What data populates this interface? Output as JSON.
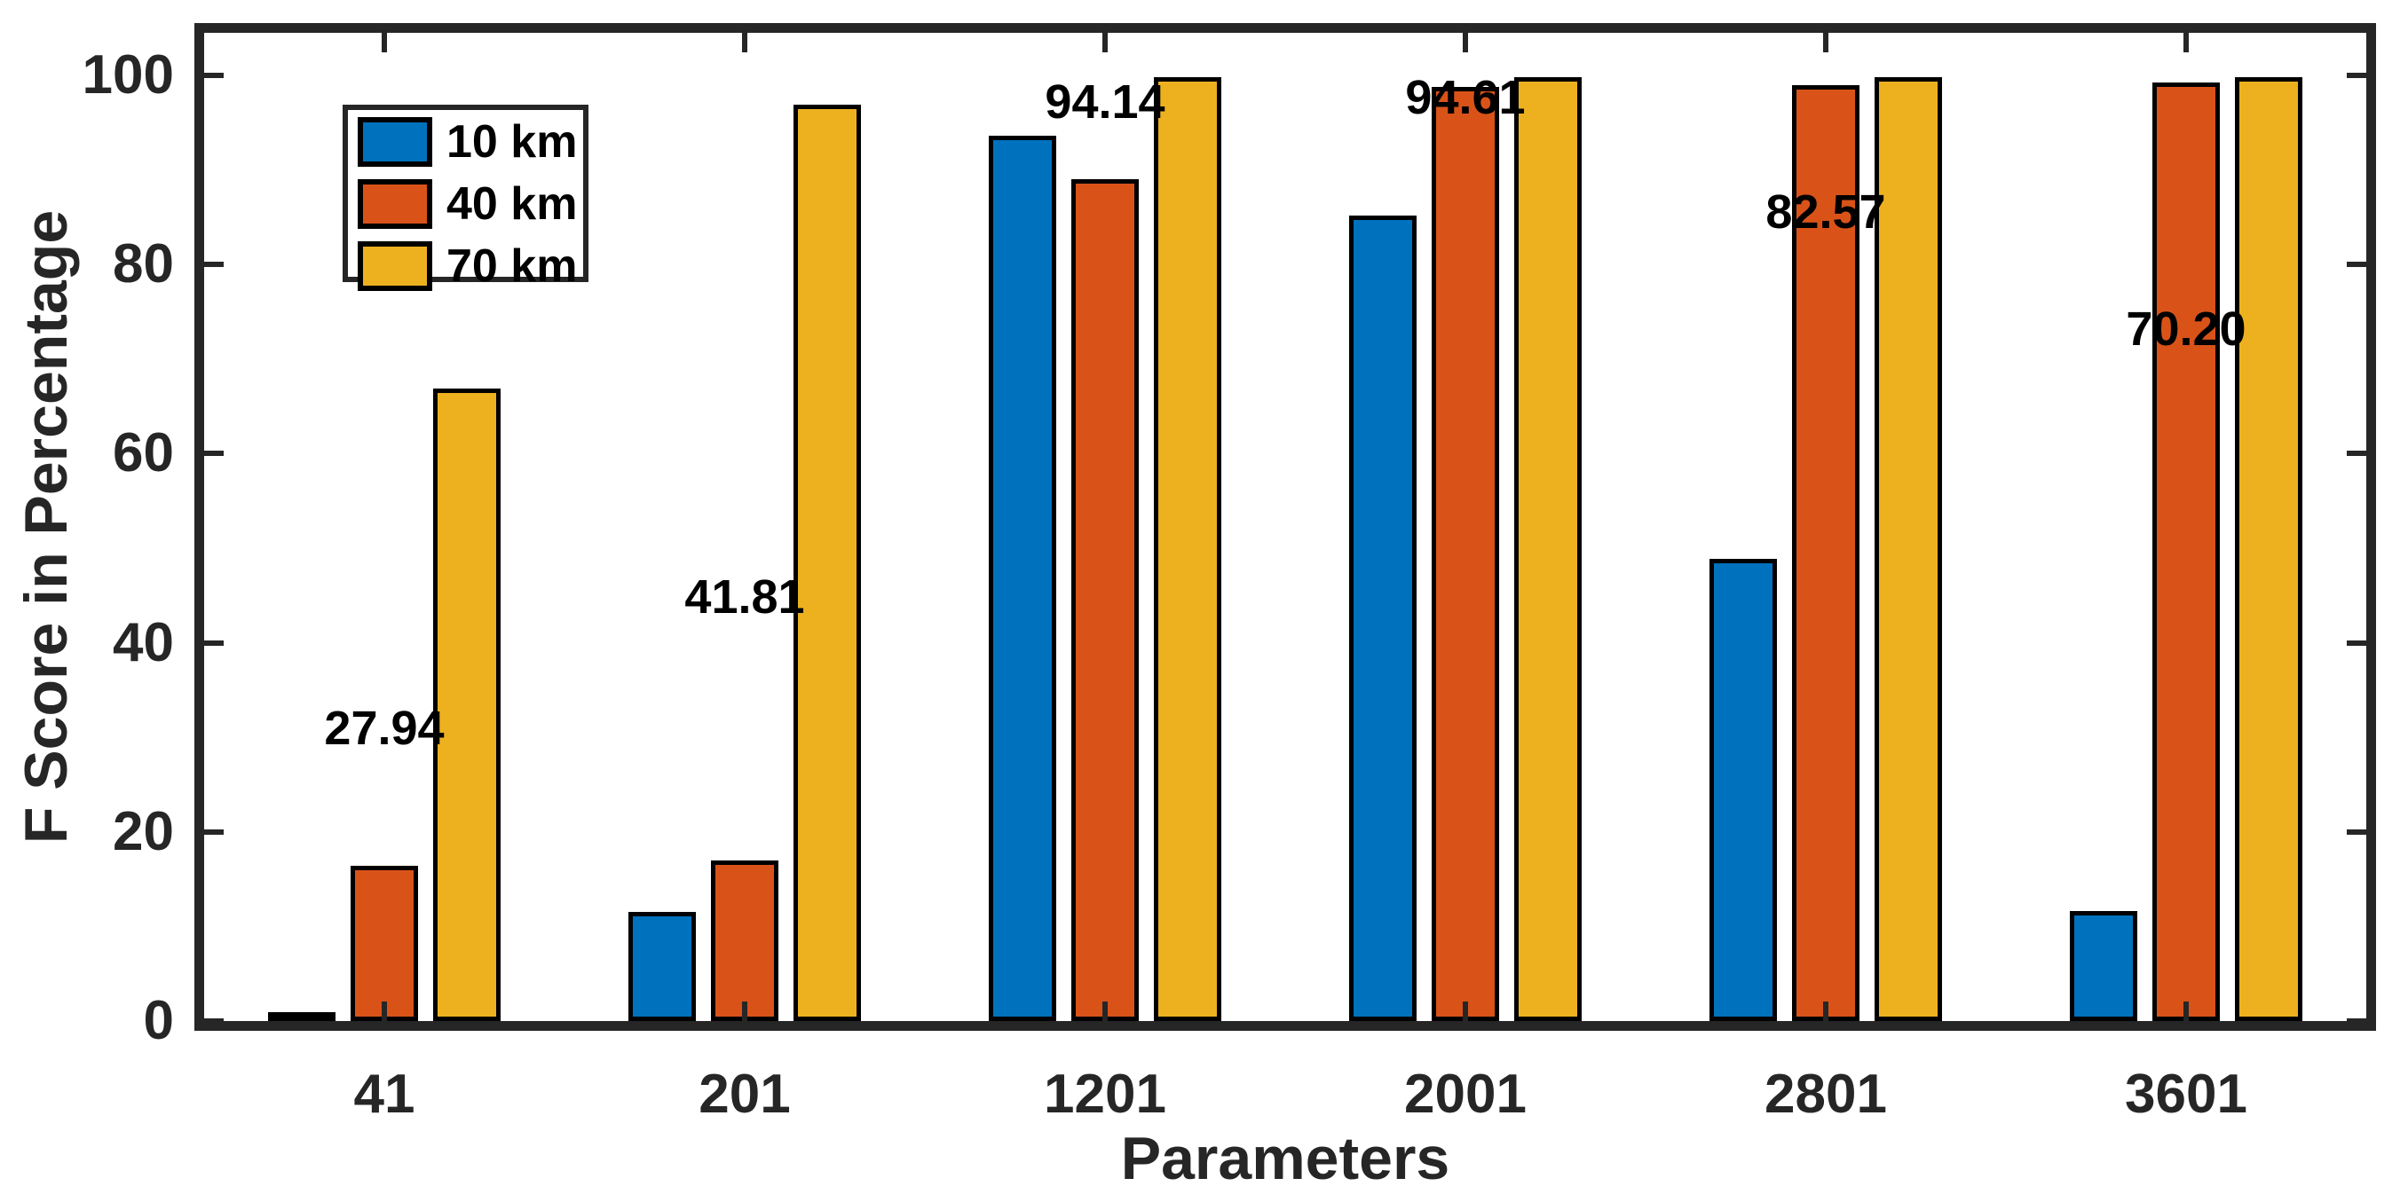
{
  "chart_data": {
    "type": "bar",
    "title": "",
    "xlabel": "Parameters",
    "ylabel": "F Score in Percentage",
    "categories": [
      "41",
      "201",
      "1201",
      "2001",
      "2801",
      "3601"
    ],
    "series": [
      {
        "name": "10 km",
        "color": "#0072BD",
        "values": [
          0.5,
          11.5,
          93.6,
          85.2,
          48.9,
          11.6
        ]
      },
      {
        "name": "40 km",
        "color": "#D95319",
        "values": [
          16.4,
          17.0,
          89.0,
          98.8,
          99.0,
          99.2
        ]
      },
      {
        "name": "70 km",
        "color": "#EDB120",
        "values": [
          66.9,
          96.9,
          99.8,
          99.8,
          99.8,
          99.8
        ]
      }
    ],
    "annotations": [
      {
        "category": "41",
        "text": "27.94",
        "value": 27.94
      },
      {
        "category": "201",
        "text": "41.81",
        "value": 41.81
      },
      {
        "category": "1201",
        "text": "94.14",
        "value": 94.14
      },
      {
        "category": "2001",
        "text": "94.61",
        "value": 94.61
      },
      {
        "category": "2801",
        "text": "82.57",
        "value": 82.57
      },
      {
        "category": "3601",
        "text": "70.20",
        "value": 70.2
      }
    ],
    "yticks": [
      0,
      20,
      40,
      60,
      80,
      100
    ],
    "ylim": [
      0,
      104.5
    ],
    "grid": false,
    "legend_position": "upper-left-inside",
    "colors": {
      "axis": "#262626",
      "bar_edge": "#000000",
      "annotation_text": "#000000",
      "background": "#ffffff"
    }
  }
}
